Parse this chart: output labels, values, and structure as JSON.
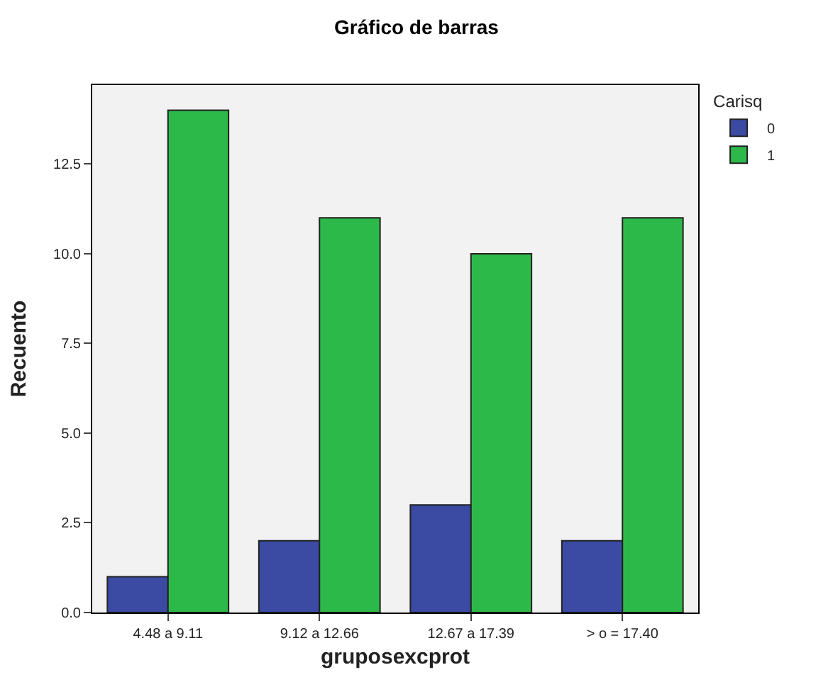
{
  "chart_data": {
    "type": "bar",
    "title": "Gráfico de barras",
    "xlabel": "gruposexcprot",
    "ylabel": "Recuento",
    "legend_title": "Carisq",
    "categories": [
      "4.48 a 9.11",
      "9.12 a 12.66",
      "12.67 a 17.39",
      "> o = 17.40"
    ],
    "series": [
      {
        "name": "0",
        "color": "#3b4ba3",
        "values": [
          1,
          2,
          3,
          2
        ]
      },
      {
        "name": "1",
        "color": "#2db94a",
        "values": [
          14,
          11,
          10,
          11
        ]
      }
    ],
    "ylim": [
      0,
      14.7
    ],
    "yticks": [
      {
        "value": 0,
        "label": "0.0"
      },
      {
        "value": 2.5,
        "label": "2.5"
      },
      {
        "value": 5,
        "label": "5.0"
      },
      {
        "value": 7.5,
        "label": "7.5"
      },
      {
        "value": 10,
        "label": "10.0"
      },
      {
        "value": 12.5,
        "label": "12.5"
      }
    ],
    "grid": false,
    "legend": "top right"
  }
}
